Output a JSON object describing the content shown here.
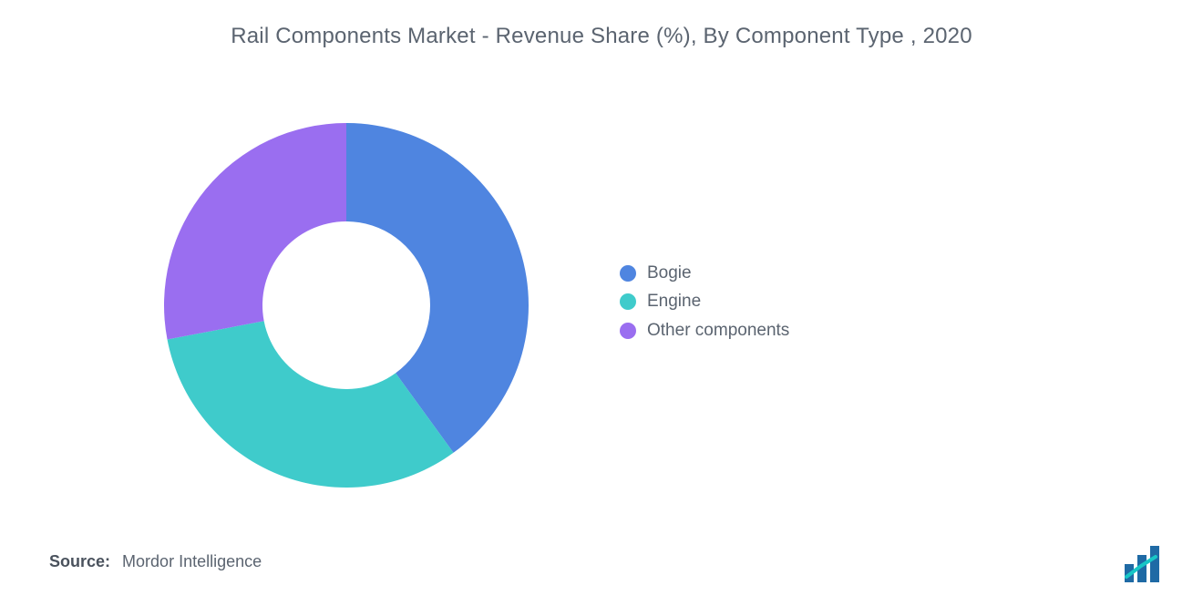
{
  "title": "Rail Components Market - Revenue Share (%), By Component Type , 2020",
  "source_label": "Source:",
  "source_value": "Mordor Intelligence",
  "chart": {
    "type": "donut",
    "background_color": "#ffffff",
    "outer_radius": 200,
    "inner_radius": 92,
    "start_angle_deg": 0,
    "slices": [
      {
        "label": "Bogie",
        "value": 40,
        "color": "#4f85e0"
      },
      {
        "label": "Engine",
        "value": 32,
        "color": "#3fcbcb"
      },
      {
        "label": "Other components",
        "value": 28,
        "color": "#9a6ef0"
      }
    ],
    "title_fontsize": 24,
    "title_color": "#5b6470",
    "legend_fontsize": 19,
    "legend_color": "#5b6470",
    "legend_swatch_radius": 9
  },
  "logo": {
    "bar_color": "#1f6aa5",
    "accent_color": "#18c6c6"
  }
}
